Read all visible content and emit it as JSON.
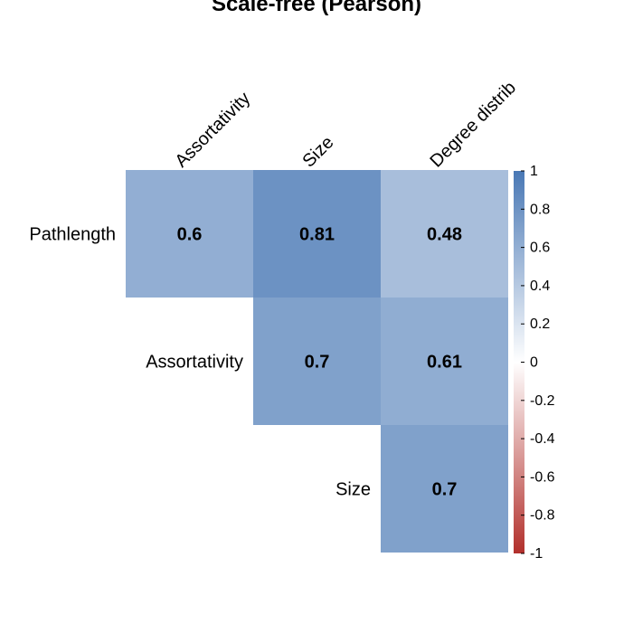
{
  "chart_data": {
    "type": "heatmap",
    "title": "Scale-free (Pearson)",
    "columns": [
      "Assortativity",
      "Size",
      "Degree distrib"
    ],
    "rows": [
      "Pathlength",
      "Assortativity",
      "Size"
    ],
    "cells": [
      {
        "row": "Pathlength",
        "col": "Assortativity",
        "value": 0.6,
        "label": "0.6"
      },
      {
        "row": "Pathlength",
        "col": "Size",
        "value": 0.81,
        "label": "0.81"
      },
      {
        "row": "Pathlength",
        "col": "Degree distrib",
        "value": 0.48,
        "label": "0.48"
      },
      {
        "row": "Assortativity",
        "col": "Size",
        "value": 0.7,
        "label": "0.7"
      },
      {
        "row": "Assortativity",
        "col": "Degree distrib",
        "value": 0.61,
        "label": "0.61"
      },
      {
        "row": "Size",
        "col": "Degree distrib",
        "value": 0.7,
        "label": "0.7"
      }
    ],
    "color_scale": {
      "range": [
        -1,
        1
      ],
      "ticks": [
        "1",
        "0.8",
        "0.6",
        "0.4",
        "0.2",
        "0",
        "-0.2",
        "-0.4",
        "-0.6",
        "-0.8",
        "-1"
      ],
      "colors": {
        "negative": "#b2302c",
        "zero": "#ffffff",
        "positive": "#4978b5"
      }
    },
    "legend_position": "right",
    "grid": false
  }
}
